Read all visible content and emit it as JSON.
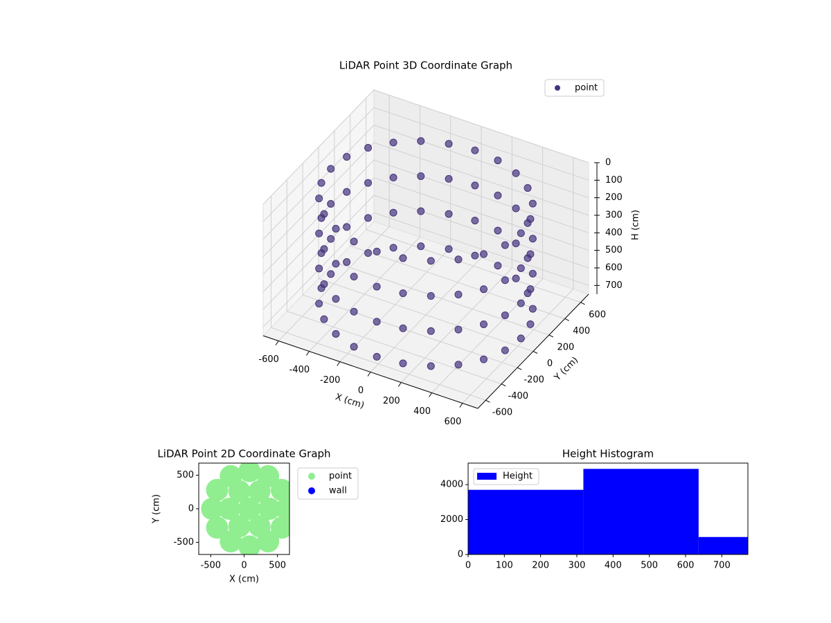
{
  "chart_data": [
    {
      "type": "scatter3d",
      "title": "LiDAR Point 3D Coordinate Graph",
      "xlabel": "X (cm)",
      "ylabel": "Y (cm)",
      "zlabel": "H (cm)",
      "xlim": [
        -700,
        700
      ],
      "ylim": [
        -700,
        700
      ],
      "zlim": [
        0,
        750
      ],
      "zinvert": true,
      "xticks": [
        -600,
        -400,
        -200,
        0,
        200,
        400,
        600
      ],
      "yticks": [
        -600,
        -400,
        -200,
        0,
        200,
        400,
        600
      ],
      "zticks": [
        0,
        100,
        200,
        300,
        400,
        500,
        600,
        700
      ],
      "legend": "upper right",
      "grid": true,
      "series": [
        {
          "name": "point",
          "color": "#46337e",
          "x": [
            620,
            620,
            620,
            620,
            599,
            599,
            599,
            599,
            537,
            537,
            537,
            537,
            438,
            438,
            438,
            438,
            310,
            310,
            310,
            310,
            160,
            160,
            160,
            160,
            0,
            0,
            0,
            0,
            -160,
            -160,
            -160,
            -160,
            -310,
            -310,
            -310,
            -310,
            -438,
            -438,
            -438,
            -438,
            -537,
            -537,
            -537,
            -537,
            -599,
            -599,
            -599,
            -599,
            -620,
            -620,
            -620,
            -620,
            -599,
            -599,
            -599,
            -599,
            -537,
            -537,
            -537,
            -537,
            -438,
            -438,
            -438,
            -438,
            -310,
            -310,
            -310,
            -310,
            -160,
            -160,
            -160,
            -160,
            0,
            0,
            0,
            0,
            160,
            160,
            160,
            160,
            310,
            310,
            310,
            310,
            438,
            438,
            438,
            438,
            537,
            537,
            537,
            537,
            599,
            599,
            599,
            599
          ],
          "y": [
            0,
            0,
            0,
            0,
            160,
            160,
            160,
            160,
            310,
            310,
            310,
            310,
            438,
            438,
            438,
            438,
            537,
            537,
            537,
            537,
            599,
            599,
            599,
            599,
            620,
            620,
            620,
            620,
            599,
            599,
            599,
            599,
            537,
            537,
            537,
            537,
            438,
            438,
            438,
            438,
            310,
            310,
            310,
            310,
            160,
            160,
            160,
            160,
            0,
            0,
            0,
            0,
            -160,
            -160,
            -160,
            -160,
            -310,
            -310,
            -310,
            -310,
            -438,
            -438,
            -438,
            -438,
            -537,
            -537,
            -537,
            -537,
            -599,
            -599,
            -599,
            -599,
            -620,
            -620,
            -620,
            -620,
            -599,
            -599,
            -599,
            -599,
            -537,
            -537,
            -537,
            -537,
            -438,
            -438,
            -438,
            -438,
            -310,
            -310,
            -310,
            -310,
            -160,
            -160,
            -160,
            -160
          ],
          "z": [
            100,
            300,
            500,
            700,
            100,
            300,
            500,
            700,
            100,
            300,
            500,
            700,
            100,
            300,
            500,
            700,
            100,
            300,
            500,
            700,
            100,
            300,
            500,
            700,
            100,
            300,
            500,
            700,
            100,
            300,
            500,
            700,
            100,
            300,
            500,
            700,
            100,
            300,
            500,
            700,
            100,
            300,
            500,
            700,
            100,
            300,
            500,
            700,
            100,
            300,
            500,
            700,
            100,
            300,
            500,
            700,
            100,
            300,
            500,
            700,
            100,
            300,
            500,
            700,
            100,
            300,
            500,
            700,
            100,
            300,
            500,
            700,
            100,
            300,
            500,
            700,
            100,
            300,
            500,
            700,
            100,
            300,
            500,
            700,
            100,
            300,
            500,
            700,
            100,
            300,
            500,
            700,
            100,
            300,
            500,
            700
          ]
        }
      ]
    },
    {
      "type": "scatter",
      "title": "LiDAR Point 2D Coordinate Graph",
      "xlabel": "X (cm)",
      "ylabel": "Y (cm)",
      "xlim": [
        -680,
        680
      ],
      "ylim": [
        -680,
        680
      ],
      "xticks": [
        -500,
        0,
        500
      ],
      "yticks": [
        -500,
        0,
        500
      ],
      "legend": "outside right",
      "series": [
        {
          "name": "point",
          "color": "#90ee90",
          "x": [
            80,
            380,
            230,
            -70,
            -220,
            -70,
            230,
            640,
            565,
            360,
            80,
            -200,
            -405,
            -480,
            -405,
            -200,
            80,
            360,
            565
          ],
          "y": [
            0,
            0,
            260,
            260,
            0,
            -260,
            -260,
            0,
            280,
            485,
            560,
            485,
            280,
            0,
            -280,
            -485,
            -560,
            -485,
            -280
          ]
        },
        {
          "name": "wall",
          "color": "#0000ff",
          "x": [],
          "y": []
        }
      ]
    },
    {
      "type": "histogram",
      "title": "Height Histogram",
      "bins": [
        0,
        318,
        636,
        772
      ],
      "counts": [
        3700,
        4900,
        1000
      ],
      "color": "#0000ff",
      "series_name": "Height",
      "legend": "upper left",
      "xlim": [
        0,
        772
      ],
      "ylim": [
        0,
        5230
      ],
      "xticks": [
        0,
        100,
        200,
        300,
        400,
        500,
        600,
        700
      ],
      "yticks": [
        0,
        2000,
        4000
      ]
    }
  ]
}
